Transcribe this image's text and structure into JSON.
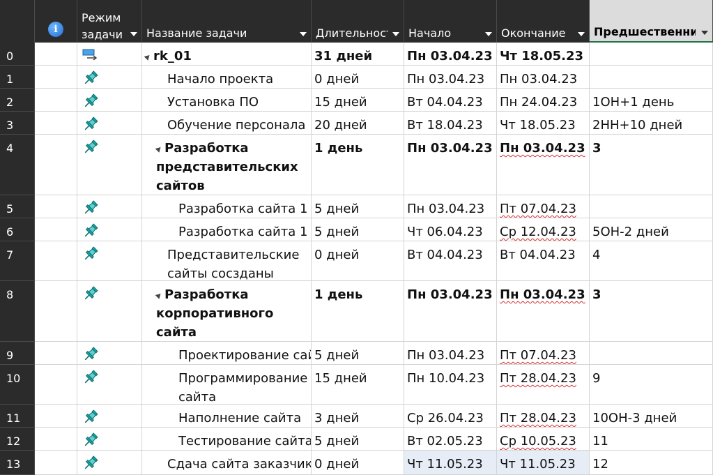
{
  "header": {
    "info_icon_label": "i",
    "mode_line1": "Режим",
    "mode_line2": "задачи",
    "name": "Название задачи",
    "duration": "Длительность",
    "start": "Начало",
    "finish": "Окончание",
    "predecessors": "Предшественни"
  },
  "colors": {
    "header_bg": "#2b2b2b",
    "accent": "#217346",
    "pin": "#1aa3a3",
    "highlight": "#e6edf7"
  },
  "rows": [
    {
      "id": "0",
      "icon": "summary-task-icon",
      "name": "rk_01",
      "dur": "31 дней",
      "start": "Пн 03.04.23",
      "finish": "Чт 18.05.23",
      "pred": ""
    },
    {
      "id": "1",
      "icon": "pin-icon",
      "name": "Начало проекта",
      "dur": "0 дней",
      "start": "Пн 03.04.23",
      "finish": "Пн 03.04.23",
      "pred": ""
    },
    {
      "id": "2",
      "icon": "pin-icon",
      "name": "Установка ПО",
      "dur": "15 дней",
      "start": "Вт 04.04.23",
      "finish": "Пн 24.04.23",
      "pred": "1ОН+1 день"
    },
    {
      "id": "3",
      "icon": "pin-icon",
      "name": "Обучение персонала",
      "dur": "20 дней",
      "start": "Вт 18.04.23",
      "finish": "Чт 18.05.23",
      "pred": "2НН+10 дней"
    },
    {
      "id": "4",
      "icon": "pin-icon",
      "name_lines": [
        "Разработка",
        "представительских",
        "сайтов"
      ],
      "dur": "1 день",
      "start": "Пн 03.04.23",
      "finish": "Пн 03.04.23",
      "pred": "3"
    },
    {
      "id": "5",
      "icon": "pin-icon",
      "name": "Разработка сайта 1",
      "dur": "5 дней",
      "start": "Пн 03.04.23",
      "finish": "Пт 07.04.23",
      "pred": ""
    },
    {
      "id": "6",
      "icon": "pin-icon",
      "name": "Разработка сайта 1",
      "dur": "5 дней",
      "start": "Чт 06.04.23",
      "finish": "Ср 12.04.23",
      "pred": "5ОН-2 дней"
    },
    {
      "id": "7",
      "icon": "pin-icon",
      "name_lines": [
        "Представительские",
        "сайты сосзданы"
      ],
      "dur": "0 дней",
      "start": "Вт 04.04.23",
      "finish": "Вт 04.04.23",
      "pred": "4"
    },
    {
      "id": "8",
      "icon": "pin-icon",
      "name_lines": [
        "Разработка",
        "корпоративного",
        "сайта"
      ],
      "dur": "1 день",
      "start": "Пн 03.04.23",
      "finish": "Пн 03.04.23",
      "pred": "3"
    },
    {
      "id": "9",
      "icon": "pin-icon",
      "name": "Проектирование сайта",
      "dur": "5 дней",
      "start": "Пн 03.04.23",
      "finish": "Пт 07.04.23",
      "pred": ""
    },
    {
      "id": "10",
      "icon": "pin-icon",
      "name_lines": [
        "Программирование",
        "сайта"
      ],
      "dur": "15 дней",
      "start": "Пн 10.04.23",
      "finish": "Пт 28.04.23",
      "pred": "9"
    },
    {
      "id": "11",
      "icon": "pin-icon",
      "name": "Наполнение сайта",
      "dur": "3 дней",
      "start": "Ср 26.04.23",
      "finish": "Пт 28.04.23",
      "pred": "10ОН-3 дней"
    },
    {
      "id": "12",
      "icon": "pin-icon",
      "name": "Тестирование сайта",
      "dur": "5 дней",
      "start": "Вт 02.05.23",
      "finish": "Ср 10.05.23",
      "pred": "11"
    },
    {
      "id": "13",
      "icon": "pin-icon",
      "name": "Сдача сайта заказчику",
      "dur": "0 дней",
      "start": "Чт 11.05.23",
      "finish": "Чт 11.05.23",
      "pred": "12"
    }
  ]
}
